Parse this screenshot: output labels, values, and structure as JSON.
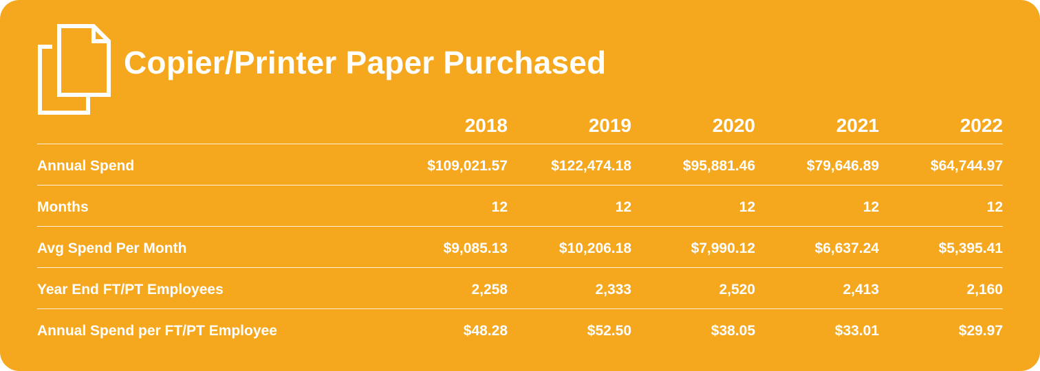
{
  "title": "Copier/Printer Paper Purchased",
  "icon": "documents-icon",
  "colors": {
    "background": "#F5A81E",
    "text": "#FFFFFF"
  },
  "table": {
    "years": [
      "2018",
      "2019",
      "2020",
      "2021",
      "2022"
    ],
    "rows": [
      {
        "label": "Annual Spend",
        "values": [
          "$109,021.57",
          "$122,474.18",
          "$95,881.46",
          "$79,646.89",
          "$64,744.97"
        ]
      },
      {
        "label": "Months",
        "values": [
          "12",
          "12",
          "12",
          "12",
          "12"
        ]
      },
      {
        "label": "Avg Spend Per Month",
        "values": [
          "$9,085.13",
          "$10,206.18",
          "$7,990.12",
          "$6,637.24",
          "$5,395.41"
        ]
      },
      {
        "label": "Year End FT/PT Employees",
        "values": [
          "2,258",
          "2,333",
          "2,520",
          "2,413",
          "2,160"
        ]
      },
      {
        "label": "Annual Spend per FT/PT Employee",
        "values": [
          "$48.28",
          "$52.50",
          "$38.05",
          "$33.01",
          "$29.97"
        ]
      }
    ]
  }
}
